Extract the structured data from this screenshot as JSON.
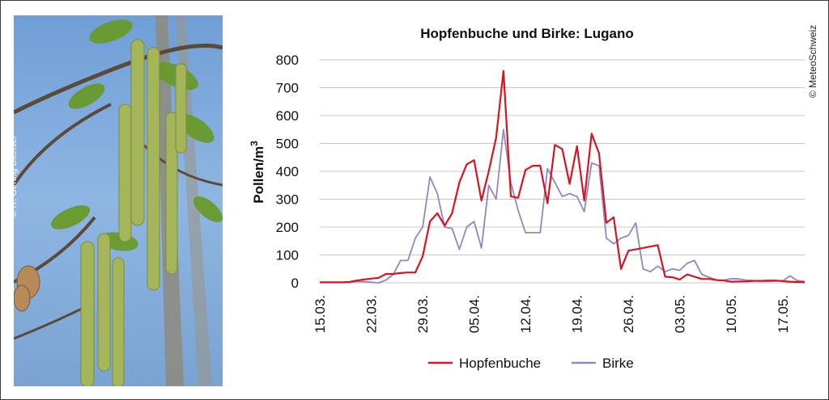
{
  "credits": {
    "photo": "© R. Gehrig Bichsel",
    "source": "© MeteoSchweiz"
  },
  "photo": {
    "subject": "hop-hornbeam catkins"
  },
  "colors": {
    "hopfenbuche": "#d7141f",
    "birke": "#8c89c4",
    "grid": "#c8c8c8"
  },
  "chart_data": {
    "type": "line",
    "title": "Hopfenbuche und Birke: Lugano",
    "ylabel": "Pollen/m",
    "ylabel_superscript": "3",
    "xlabel": "",
    "ylim": [
      0,
      800
    ],
    "yticks": [
      0,
      100,
      200,
      300,
      400,
      500,
      600,
      700,
      800
    ],
    "xticks": [
      "15.03.",
      "22.03.",
      "29.03.",
      "05.04.",
      "12.04.",
      "19.04.",
      "26.04.",
      "03.05.",
      "10.05.",
      "17.05."
    ],
    "x_start": "15.03.",
    "grid": true,
    "legend": "bottom",
    "series": [
      {
        "name": "Hopfenbuche",
        "color": "#d7141f",
        "values": [
          2,
          2,
          2,
          2,
          3,
          8,
          12,
          15,
          18,
          32,
          32,
          35,
          37,
          37,
          95,
          220,
          250,
          205,
          250,
          360,
          425,
          440,
          295,
          400,
          520,
          760,
          310,
          305,
          405,
          420,
          420,
          285,
          495,
          480,
          355,
          490,
          295,
          535,
          465,
          215,
          235,
          50,
          115,
          120,
          125,
          130,
          135,
          22,
          20,
          12,
          30,
          22,
          14,
          14,
          10,
          8,
          4,
          5,
          5,
          7,
          7,
          8,
          8,
          6,
          4,
          3,
          2
        ]
      },
      {
        "name": "Birke",
        "color": "#8c89c4",
        "values": [
          1,
          1,
          1,
          1,
          2,
          5,
          4,
          2,
          0,
          10,
          30,
          80,
          80,
          160,
          200,
          380,
          320,
          200,
          195,
          120,
          200,
          220,
          125,
          350,
          300,
          550,
          360,
          260,
          180,
          180,
          180,
          410,
          360,
          310,
          320,
          310,
          255,
          430,
          420,
          160,
          140,
          160,
          170,
          215,
          50,
          40,
          60,
          40,
          50,
          45,
          70,
          80,
          30,
          20,
          10,
          10,
          15,
          14,
          10,
          8,
          6,
          5,
          6,
          7,
          25,
          8,
          5
        ]
      }
    ]
  }
}
